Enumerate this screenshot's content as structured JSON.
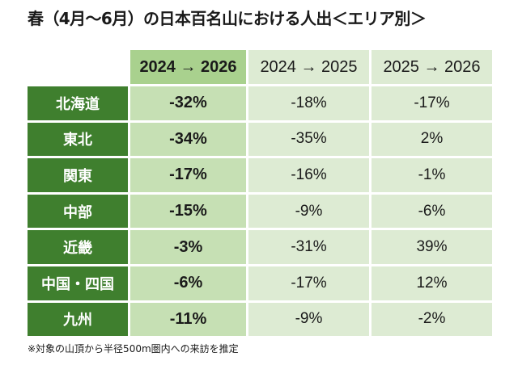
{
  "title": "春（4月〜6月）の日本百名山における人出＜エリア別＞",
  "footnote": "※対象の山頂から半径500m圏内への来訪を推定",
  "chart_data": {
    "type": "table",
    "columns": [
      "2024 → 2026",
      "2024 → 2025",
      "2025 → 2026"
    ],
    "rows": [
      {
        "area": "北海道",
        "values": [
          "-32%",
          "-18%",
          "-17%"
        ]
      },
      {
        "area": "東北",
        "values": [
          "-34%",
          "-35%",
          "2%"
        ]
      },
      {
        "area": "関東",
        "values": [
          "-17%",
          "-16%",
          "-1%"
        ]
      },
      {
        "area": "中部",
        "values": [
          "-15%",
          "-9%",
          "-6%"
        ]
      },
      {
        "area": "近畿",
        "values": [
          "-3%",
          "-31%",
          "39%"
        ]
      },
      {
        "area": "中国・四国",
        "values": [
          "-6%",
          "-17%",
          "12%"
        ]
      },
      {
        "area": "九州",
        "values": [
          "-11%",
          "-9%",
          "-2%"
        ]
      }
    ],
    "colors": {
      "row_label_bg": "#3f7f2e",
      "highlight_header_bg": "#a9d18e",
      "highlight_col_bg": "#c6e0b4",
      "other_bg": "#ddebd3"
    }
  }
}
